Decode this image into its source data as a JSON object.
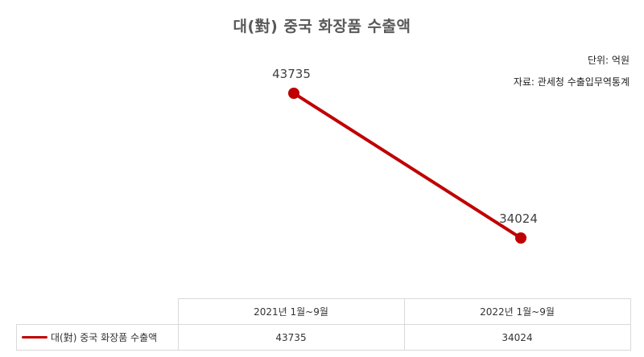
{
  "chart_data": {
    "type": "line",
    "title": "대(對) 중국 화장품 수출액",
    "unit_note": "단위: 억원",
    "source_note": "자료: 관세청 수출입무역통계",
    "categories": [
      "2021년 1월~9월",
      "2022년 1월~9월"
    ],
    "series": [
      {
        "name": "대(對) 중국 화장품 수출액",
        "values": [
          43735,
          34024
        ],
        "color": "#c00000"
      }
    ],
    "data_labels": [
      "43735",
      "34024"
    ],
    "table_values": [
      "43735",
      "34024"
    ],
    "grid": false,
    "legend_placement": "data-table"
  }
}
